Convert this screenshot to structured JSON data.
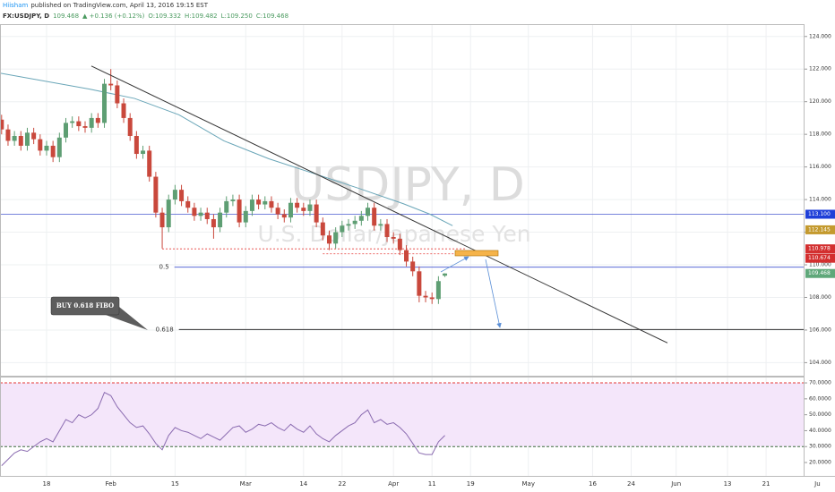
{
  "header": {
    "author": "Hiisham",
    "published": "published on TradingView.com, April 13, 2016 19:15 EST",
    "symbol": "FX:USDJPY, D",
    "last": "109.468",
    "change": "▲ +0.136 (+0.12%)",
    "ohlc": [
      "O:109.332",
      "H:109.482",
      "L:109.250",
      "C:109.468"
    ]
  },
  "chart_data": [
    {
      "type": "candlestick",
      "title": "USDJPY, D",
      "subtitle": "U.S. Dollar/Japanese Yen",
      "x": [
        -7,
        -6,
        -5,
        -4,
        -3,
        -2,
        -1,
        0,
        1,
        2,
        3,
        4,
        5,
        6,
        7,
        8,
        9,
        10,
        11,
        12,
        13,
        14,
        15,
        16,
        17,
        18,
        19,
        20,
        21,
        22,
        23,
        24,
        25,
        26,
        27,
        28,
        29,
        30,
        31,
        32,
        33,
        34,
        35,
        36,
        37,
        38,
        39,
        40,
        41,
        42,
        43,
        44,
        45,
        46,
        47,
        48,
        49,
        50,
        51,
        52,
        53,
        54,
        55,
        56,
        57,
        58,
        59,
        60,
        61,
        62
      ],
      "open": [
        118.9,
        118.3,
        117.6,
        117.9,
        117.3,
        118.1,
        117.7,
        117.0,
        117.3,
        116.6,
        117.8,
        118.7,
        118.8,
        118.5,
        118.4,
        119.0,
        118.7,
        121.1,
        121.0,
        119.9,
        119.0,
        117.9,
        116.8,
        117.0,
        115.4,
        113.2,
        112.3,
        114.0,
        114.6,
        113.9,
        113.5,
        113.0,
        113.2,
        112.8,
        112.3,
        113.2,
        113.9,
        114.0,
        112.6,
        113.3,
        114.0,
        113.7,
        113.9,
        113.5,
        113.1,
        112.9,
        113.8,
        113.5,
        113.3,
        113.7,
        112.6,
        111.8,
        111.3,
        112.0,
        112.4,
        112.5,
        112.7,
        113.0,
        113.5,
        112.4,
        112.5,
        111.7,
        111.6,
        110.9,
        110.2,
        109.6,
        108.1,
        108.0,
        107.9,
        109.332
      ],
      "high": [
        119.2,
        118.6,
        118.2,
        118.2,
        118.4,
        118.4,
        118.0,
        117.6,
        117.6,
        118.1,
        119.0,
        119.1,
        119.1,
        118.8,
        119.3,
        119.3,
        121.4,
        122.0,
        121.3,
        120.2,
        119.3,
        118.2,
        117.3,
        117.3,
        115.7,
        113.5,
        114.3,
        114.9,
        114.9,
        114.2,
        113.8,
        113.5,
        113.5,
        113.1,
        113.5,
        114.2,
        114.3,
        114.3,
        113.6,
        114.3,
        114.3,
        114.2,
        114.2,
        113.8,
        113.4,
        114.1,
        114.1,
        113.8,
        114.0,
        114.0,
        112.9,
        112.1,
        112.3,
        112.7,
        112.8,
        113.0,
        113.3,
        113.8,
        113.8,
        112.8,
        112.8,
        112.0,
        111.9,
        111.2,
        110.5,
        109.9,
        108.4,
        108.3,
        109.3,
        109.482
      ],
      "low": [
        118.0,
        117.3,
        117.3,
        117.0,
        117.0,
        117.4,
        116.7,
        116.7,
        116.3,
        116.3,
        117.5,
        118.4,
        118.2,
        118.1,
        118.1,
        118.4,
        118.4,
        120.7,
        119.6,
        118.7,
        117.6,
        116.5,
        116.5,
        115.1,
        112.9,
        111.0,
        112.0,
        113.7,
        113.6,
        113.2,
        112.7,
        112.7,
        112.5,
        111.6,
        112.0,
        112.9,
        113.6,
        112.3,
        112.3,
        113.0,
        113.4,
        113.4,
        113.2,
        112.8,
        112.6,
        112.6,
        113.2,
        113.0,
        113.0,
        112.3,
        111.5,
        110.9,
        111.0,
        111.7,
        112.1,
        112.2,
        112.4,
        112.7,
        112.1,
        112.1,
        111.4,
        111.3,
        110.6,
        109.9,
        109.3,
        107.7,
        107.7,
        107.6,
        107.6,
        109.25
      ],
      "close": [
        118.3,
        117.6,
        117.9,
        117.3,
        118.1,
        117.7,
        117.0,
        117.3,
        116.6,
        117.8,
        118.7,
        118.8,
        118.5,
        118.4,
        119.0,
        118.7,
        121.1,
        121.0,
        119.9,
        119.0,
        117.9,
        116.8,
        117.0,
        115.4,
        113.2,
        112.3,
        114.0,
        114.6,
        113.9,
        113.5,
        113.0,
        113.2,
        112.8,
        112.3,
        113.2,
        113.9,
        114.0,
        112.6,
        113.3,
        114.0,
        113.7,
        113.9,
        113.5,
        113.1,
        112.9,
        113.8,
        113.5,
        113.3,
        113.7,
        112.6,
        111.8,
        111.3,
        112.0,
        112.4,
        112.5,
        112.7,
        113.0,
        113.5,
        112.4,
        112.5,
        111.7,
        111.6,
        110.9,
        110.2,
        109.6,
        108.1,
        108.0,
        107.9,
        109.0,
        109.468
      ],
      "up_color": "#5e9e73",
      "down_color": "#c9483c",
      "ma": {
        "color": "#6aa6b8",
        "x": [
          -7.25,
          6.7,
          13.7,
          20.6,
          27.6,
          34.6,
          41.6,
          48.5,
          55.5,
          59.7,
          63.2
        ],
        "values": [
          121.75,
          120.77,
          120.2,
          119.2,
          117.6,
          116.5,
          115.6,
          114.7,
          113.75,
          113.1,
          112.4
        ]
      },
      "trendline": {
        "color": "#333333",
        "x": [
          6.97,
          96.65
        ],
        "values": [
          122.19,
          105.21
        ]
      },
      "levels": [
        {
          "value": 113.1,
          "color": "#4a5bd0"
        },
        {
          "value": 110.978,
          "x": [
            18,
            65.3
          ],
          "color": "#e53935",
          "dashed": true
        },
        {
          "value": 110.674,
          "x": [
            43,
            65.3
          ],
          "color": "#e53935",
          "dashed": true
        }
      ],
      "fib": [
        {
          "label": "0.5",
          "value": 109.86,
          "x_start": 19.9,
          "color": "#5c6bd6"
        },
        {
          "label": "0.618",
          "value": 106.03,
          "x_start": 20.6,
          "color": "#333333"
        }
      ],
      "callout": "BUY 0.618 FIBO",
      "price_tags": [
        {
          "value": 113.1,
          "label": "113.100",
          "color": "#1e3fd8"
        },
        {
          "value": 112.145,
          "label": "112.145",
          "color": "#c49a2e"
        },
        {
          "value": 110.978,
          "label": "110.978",
          "color": "#d32f2f"
        },
        {
          "value": 110.674,
          "label": "110.674",
          "color": "#d32f2f"
        },
        {
          "value": 109.468,
          "label": "109.468",
          "color": "#5fa87a"
        }
      ],
      "xlim": [
        -7.25,
        121
      ],
      "ylim": [
        103.2,
        124.7
      ],
      "yticks": [
        {
          "value": 104,
          "label": "104.000"
        },
        {
          "value": 106,
          "label": "106.000"
        },
        {
          "value": 108,
          "label": "108.000"
        },
        {
          "value": 110,
          "label": "110.000"
        },
        {
          "value": 112,
          "label": "112.000"
        },
        {
          "value": 114,
          "label": "114.000"
        },
        {
          "value": 116,
          "label": "116.000"
        },
        {
          "value": 118,
          "label": "118.000"
        },
        {
          "value": 120,
          "label": "120.000"
        },
        {
          "value": 122,
          "label": "122.000"
        },
        {
          "value": 124,
          "label": "124.000"
        }
      ],
      "grid": true
    },
    {
      "type": "line",
      "color": "#8a6bb0",
      "x": [
        -7,
        -6,
        -5,
        -4,
        -3,
        -2,
        -1,
        0,
        1,
        2,
        3,
        4,
        5,
        6,
        7,
        8,
        9,
        10,
        11,
        12,
        13,
        14,
        15,
        16,
        17,
        18,
        19,
        20,
        21,
        22,
        23,
        24,
        25,
        26,
        27,
        28,
        29,
        30,
        31,
        32,
        33,
        34,
        35,
        36,
        37,
        38,
        39,
        40,
        41,
        42,
        43,
        44,
        45,
        46,
        47,
        48,
        49,
        50,
        51,
        52,
        53,
        54,
        55,
        56,
        57,
        58,
        59,
        60,
        61,
        62
      ],
      "values": [
        18,
        22,
        26,
        28,
        27,
        30,
        33,
        35,
        33,
        40,
        47,
        45,
        50,
        48,
        50,
        54,
        64,
        62,
        55,
        50,
        45,
        42,
        43,
        38,
        32,
        28,
        37,
        42,
        40,
        39,
        37,
        35,
        38,
        36,
        34,
        38,
        42,
        43,
        39,
        41,
        44,
        43,
        45,
        42,
        40,
        44,
        41,
        39,
        43,
        38,
        35,
        33,
        37,
        40,
        43,
        45,
        50,
        53,
        45,
        47,
        44,
        45,
        42,
        38,
        32,
        26,
        25,
        25,
        33,
        37
      ],
      "bands": [
        {
          "value": 70,
          "color": "#e53935"
        },
        {
          "value": 30,
          "color": "#3d6b3d"
        }
      ],
      "band_fill": "#f4e6fa",
      "xlim": [
        -7.25,
        121
      ],
      "ylim": [
        11.6,
        73.4
      ],
      "yticks": [
        {
          "value": 20,
          "label": "20.0000"
        },
        {
          "value": 30,
          "label": "30.0000"
        },
        {
          "value": 40,
          "label": "40.0000"
        },
        {
          "value": 50,
          "label": "50.0000"
        },
        {
          "value": 60,
          "label": "60.0000"
        },
        {
          "value": 70,
          "label": "70.0000"
        }
      ],
      "xticks": [
        {
          "value": 0,
          "label": "18"
        },
        {
          "value": 10,
          "label": "Feb"
        },
        {
          "value": 20,
          "label": "15"
        },
        {
          "value": 31,
          "label": "Mar"
        },
        {
          "value": 40,
          "label": "14"
        },
        {
          "value": 46,
          "label": "22"
        },
        {
          "value": 54,
          "label": "Apr"
        },
        {
          "value": 60,
          "label": "11"
        },
        {
          "value": 66,
          "label": "19"
        },
        {
          "value": 75,
          "label": "May"
        },
        {
          "value": 85,
          "label": "16"
        },
        {
          "value": 91,
          "label": "24"
        },
        {
          "value": 98,
          "label": "Jun"
        },
        {
          "value": 106,
          "label": "13"
        },
        {
          "value": 112,
          "label": "21"
        },
        {
          "value": 120,
          "label": "Ju"
        }
      ],
      "grid": true
    }
  ]
}
